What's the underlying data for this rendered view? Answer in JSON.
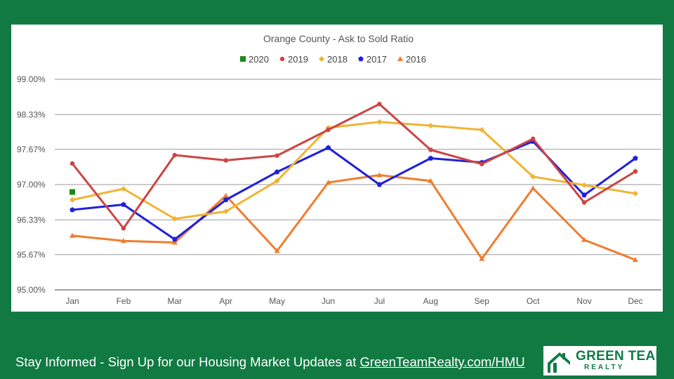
{
  "chart_data": {
    "type": "line",
    "title": "Orange County - Ask to Sold Ratio",
    "categories": [
      "Jan",
      "Feb",
      "Mar",
      "Apr",
      "May",
      "Jun",
      "Jul",
      "Aug",
      "Sep",
      "Oct",
      "Nov",
      "Dec"
    ],
    "ylim": [
      95.0,
      99.0
    ],
    "yticks": [
      95.0,
      95.67,
      96.33,
      97.0,
      97.67,
      98.33,
      99.0
    ],
    "ytick_labels": [
      "95.00%",
      "95.67%",
      "96.33%",
      "97.00%",
      "97.67%",
      "98.33%",
      "99.00%"
    ],
    "grid": true,
    "legend_position": "top",
    "series": [
      {
        "name": "2020",
        "color": "#1a8a1a",
        "marker": "square",
        "values": [
          96.86,
          null,
          null,
          null,
          null,
          null,
          null,
          null,
          null,
          null,
          null,
          null
        ]
      },
      {
        "name": "2019",
        "color": "#cc4444",
        "marker": "circle",
        "values": [
          97.4,
          96.17,
          97.56,
          97.46,
          97.55,
          98.04,
          98.53,
          97.66,
          97.39,
          97.87,
          96.66,
          97.25
        ]
      },
      {
        "name": "2018",
        "color": "#f0b432",
        "marker": "diamond",
        "values": [
          96.71,
          96.92,
          96.35,
          96.49,
          97.07,
          98.08,
          98.19,
          98.12,
          98.04,
          97.15,
          96.99,
          96.83
        ]
      },
      {
        "name": "2017",
        "color": "#1f1fdc",
        "marker": "pentagon",
        "values": [
          96.52,
          96.62,
          95.96,
          96.71,
          97.24,
          97.7,
          97.0,
          97.5,
          97.42,
          97.82,
          96.8,
          97.5
        ]
      },
      {
        "name": "2016",
        "color": "#f07c2e",
        "marker": "triangle",
        "values": [
          96.03,
          95.93,
          95.9,
          96.79,
          95.74,
          97.04,
          97.18,
          97.07,
          95.59,
          96.93,
          95.95,
          95.57
        ]
      }
    ]
  },
  "footer": {
    "text": "Stay Informed - Sign Up for our Housing Market Updates at ",
    "link": "GreenTeamRealty.com/HMU"
  },
  "logo": {
    "line1": "GREEN TEAM",
    "line2": "REALTY"
  }
}
